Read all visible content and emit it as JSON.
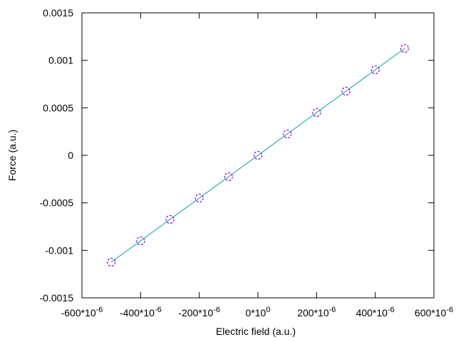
{
  "chart_data": {
    "type": "line",
    "xlabel": "Electric field (a.u.)",
    "ylabel": "Force (a.u.)",
    "x": [
      -0.0005,
      -0.0004,
      -0.0003,
      -0.0002,
      -0.0001,
      0,
      0.0001,
      0.0002,
      0.0003,
      0.0004,
      0.0005
    ],
    "values": [
      -0.001125,
      -0.0009,
      -0.000675,
      -0.00045,
      -0.000225,
      0,
      0.000225,
      0.00045,
      0.000675,
      0.0009,
      0.001125
    ],
    "line_color": "#009e9e",
    "marker_color": "#9400d3",
    "xlim": [
      -0.0006,
      0.0006
    ],
    "xticks": [
      {
        "value": -0.0006,
        "label": "-600*10",
        "exponent": "-6"
      },
      {
        "value": -0.0004,
        "label": "-400*10",
        "exponent": "-6"
      },
      {
        "value": -0.0002,
        "label": "-200*10",
        "exponent": "-6"
      },
      {
        "value": 0,
        "label": "0*10",
        "exponent": "0"
      },
      {
        "value": 0.0002,
        "label": "200*10",
        "exponent": "-6"
      },
      {
        "value": 0.0004,
        "label": "400*10",
        "exponent": "-6"
      },
      {
        "value": 0.0006,
        "label": "600*10",
        "exponent": "-6"
      }
    ],
    "ylim": [
      -0.0015,
      0.0015
    ],
    "yticks": [
      -0.0015,
      -0.001,
      -0.0005,
      0,
      0.0005,
      0.001,
      0.0015
    ]
  }
}
